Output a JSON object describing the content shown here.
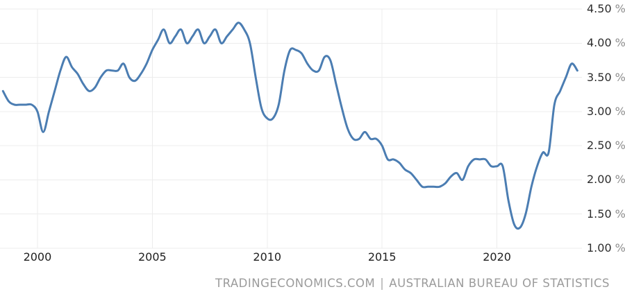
{
  "attribution": {
    "site": "TRADINGECONOMICS.COM",
    "separator": "|",
    "source": "AUSTRALIAN BUREAU OF STATISTICS"
  },
  "colors": {
    "background": "#ffffff",
    "line": "#4b7db2",
    "grid": "#ececec",
    "tick_number": "#2d2d2d",
    "tick_percent": "#8e8e8e",
    "x_label": "#202020",
    "attribution_text": "#9b9b9b"
  },
  "chart_data": {
    "type": "line",
    "title": "",
    "unit": "%",
    "grid": true,
    "legend": "none",
    "y_axis_side": "right",
    "ylim": [
      1.0,
      4.5
    ],
    "xlim": [
      1998.37,
      2023.7
    ],
    "y_ticks": [
      {
        "value": 4.5,
        "label": "4.50 %"
      },
      {
        "value": 4.0,
        "label": "4.00 %"
      },
      {
        "value": 3.5,
        "label": "3.50 %"
      },
      {
        "value": 3.0,
        "label": "3.00 %"
      },
      {
        "value": 2.5,
        "label": "2.50 %"
      },
      {
        "value": 2.0,
        "label": "2.00 %"
      },
      {
        "value": 1.5,
        "label": "1.50 %"
      },
      {
        "value": 1.0,
        "label": "1.00 %"
      }
    ],
    "x_ticks": [
      {
        "value": 2000,
        "label": "2000"
      },
      {
        "value": 2005,
        "label": "2005"
      },
      {
        "value": 2010,
        "label": "2010"
      },
      {
        "value": 2015,
        "label": "2015"
      },
      {
        "value": 2020,
        "label": "2020"
      }
    ],
    "series": [
      {
        "x_unit": "decimal_year_quarterly",
        "points": [
          [
            1998.5,
            3.3
          ],
          [
            1998.75,
            3.15
          ],
          [
            1999.0,
            3.1
          ],
          [
            1999.25,
            3.1
          ],
          [
            1999.5,
            3.1
          ],
          [
            1999.75,
            3.1
          ],
          [
            2000.0,
            3.0
          ],
          [
            2000.25,
            2.7
          ],
          [
            2000.5,
            3.0
          ],
          [
            2000.75,
            3.3
          ],
          [
            2001.0,
            3.6
          ],
          [
            2001.25,
            3.8
          ],
          [
            2001.5,
            3.65
          ],
          [
            2001.75,
            3.55
          ],
          [
            2002.0,
            3.4
          ],
          [
            2002.25,
            3.3
          ],
          [
            2002.5,
            3.35
          ],
          [
            2002.75,
            3.5
          ],
          [
            2003.0,
            3.6
          ],
          [
            2003.25,
            3.6
          ],
          [
            2003.5,
            3.6
          ],
          [
            2003.75,
            3.7
          ],
          [
            2004.0,
            3.5
          ],
          [
            2004.25,
            3.45
          ],
          [
            2004.5,
            3.55
          ],
          [
            2004.75,
            3.7
          ],
          [
            2005.0,
            3.9
          ],
          [
            2005.25,
            4.05
          ],
          [
            2005.5,
            4.2
          ],
          [
            2005.75,
            4.0
          ],
          [
            2006.0,
            4.1
          ],
          [
            2006.25,
            4.2
          ],
          [
            2006.5,
            4.0
          ],
          [
            2006.75,
            4.1
          ],
          [
            2007.0,
            4.2
          ],
          [
            2007.25,
            4.0
          ],
          [
            2007.5,
            4.1
          ],
          [
            2007.75,
            4.2
          ],
          [
            2008.0,
            4.0
          ],
          [
            2008.25,
            4.1
          ],
          [
            2008.5,
            4.2
          ],
          [
            2008.75,
            4.3
          ],
          [
            2009.0,
            4.2
          ],
          [
            2009.25,
            4.0
          ],
          [
            2009.5,
            3.5
          ],
          [
            2009.75,
            3.05
          ],
          [
            2010.0,
            2.9
          ],
          [
            2010.25,
            2.9
          ],
          [
            2010.5,
            3.1
          ],
          [
            2010.75,
            3.6
          ],
          [
            2011.0,
            3.9
          ],
          [
            2011.25,
            3.9
          ],
          [
            2011.5,
            3.85
          ],
          [
            2011.75,
            3.7
          ],
          [
            2012.0,
            3.6
          ],
          [
            2012.25,
            3.6
          ],
          [
            2012.5,
            3.8
          ],
          [
            2012.75,
            3.75
          ],
          [
            2013.0,
            3.4
          ],
          [
            2013.25,
            3.05
          ],
          [
            2013.5,
            2.75
          ],
          [
            2013.75,
            2.6
          ],
          [
            2014.0,
            2.6
          ],
          [
            2014.25,
            2.7
          ],
          [
            2014.5,
            2.6
          ],
          [
            2014.75,
            2.6
          ],
          [
            2015.0,
            2.5
          ],
          [
            2015.25,
            2.3
          ],
          [
            2015.5,
            2.3
          ],
          [
            2015.75,
            2.25
          ],
          [
            2016.0,
            2.15
          ],
          [
            2016.25,
            2.1
          ],
          [
            2016.5,
            2.0
          ],
          [
            2016.75,
            1.9
          ],
          [
            2017.0,
            1.9
          ],
          [
            2017.25,
            1.9
          ],
          [
            2017.5,
            1.9
          ],
          [
            2017.75,
            1.95
          ],
          [
            2018.0,
            2.05
          ],
          [
            2018.25,
            2.1
          ],
          [
            2018.5,
            2.0
          ],
          [
            2018.75,
            2.2
          ],
          [
            2019.0,
            2.3
          ],
          [
            2019.25,
            2.3
          ],
          [
            2019.5,
            2.3
          ],
          [
            2019.75,
            2.2
          ],
          [
            2020.0,
            2.2
          ],
          [
            2020.25,
            2.2
          ],
          [
            2020.5,
            1.7
          ],
          [
            2020.75,
            1.35
          ],
          [
            2021.0,
            1.3
          ],
          [
            2021.25,
            1.5
          ],
          [
            2021.5,
            1.9
          ],
          [
            2021.75,
            2.2
          ],
          [
            2022.0,
            2.4
          ],
          [
            2022.25,
            2.4
          ],
          [
            2022.5,
            3.1
          ],
          [
            2022.75,
            3.3
          ],
          [
            2023.0,
            3.5
          ],
          [
            2023.25,
            3.7
          ],
          [
            2023.5,
            3.6
          ]
        ]
      }
    ]
  }
}
